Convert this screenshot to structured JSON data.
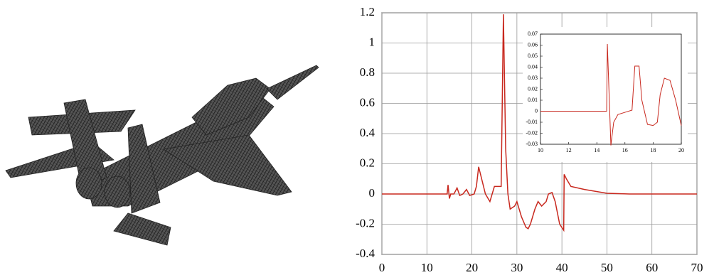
{
  "chart_data": [
    {
      "type": "line",
      "x": [
        0,
        14.5,
        14.7,
        15,
        15.3,
        16,
        16.7,
        17.3,
        18,
        18.8,
        19.5,
        20.5,
        21,
        21.5,
        22,
        23,
        24,
        25,
        26.5,
        27,
        27.5,
        28,
        28.5,
        29.5,
        30,
        31,
        32,
        32.5,
        33,
        34,
        34.7,
        35.5,
        36.5,
        37,
        37.8,
        38.5,
        39.5,
        40.4,
        40.5,
        41,
        42,
        45,
        50,
        55,
        70
      ],
      "values": [
        0,
        0,
        0.06,
        -0.03,
        0,
        0,
        0.04,
        -0.01,
        0,
        0.03,
        -0.01,
        0,
        0.05,
        0.18,
        0.12,
        0,
        -0.05,
        0.05,
        0.05,
        1.19,
        0.3,
        0,
        -0.1,
        -0.08,
        -0.05,
        -0.15,
        -0.22,
        -0.23,
        -0.2,
        -0.1,
        -0.05,
        -0.08,
        -0.05,
        0,
        0.01,
        -0.05,
        -0.2,
        -0.24,
        0.13,
        0.1,
        0.05,
        0.03,
        0.005,
        0,
        0
      ],
      "color": "#c8281e",
      "xlim": [
        0,
        70
      ],
      "xticks": [
        0,
        10,
        20,
        30,
        40,
        50,
        60,
        70
      ],
      "ylim": [
        -0.4,
        1.2
      ],
      "yticks": [
        -0.4,
        -0.2,
        0,
        0.2,
        0.4,
        0.6,
        0.8,
        1,
        1.2
      ],
      "grid": true
    },
    {
      "type": "line",
      "x": [
        10,
        14.7,
        14.75,
        15,
        15.2,
        15.5,
        16,
        16.5,
        16.7,
        17,
        17.2,
        17.6,
        18,
        18.3,
        18.5,
        18.8,
        19.2,
        19.6,
        20
      ],
      "values": [
        0,
        0,
        0.061,
        -0.031,
        -0.01,
        -0.003,
        -0.001,
        0.001,
        0.041,
        0.041,
        0.01,
        -0.012,
        -0.013,
        -0.01,
        0.015,
        0.03,
        0.028,
        0.01,
        -0.013
      ],
      "color": "#c8281e",
      "xlim": [
        10,
        20
      ],
      "xticks": [
        10,
        12,
        14,
        16,
        18,
        20
      ],
      "ylim": [
        -0.03,
        0.07
      ],
      "yticks": [
        -0.03,
        -0.02,
        -0.01,
        0,
        0.01,
        0.02,
        0.03,
        0.04,
        0.05,
        0.06,
        0.07
      ],
      "grid": false
    }
  ]
}
